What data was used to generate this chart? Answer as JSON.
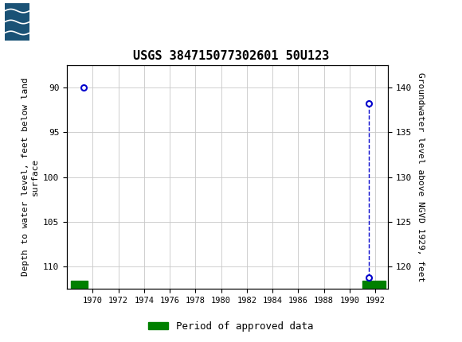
{
  "title": "USGS 384715077302601 50U123",
  "point1_x": 1969.3,
  "point1_y_depth": 90.0,
  "point2_x": 1991.5,
  "point2_y_depth": 91.8,
  "point3_x": 1991.5,
  "point3_y_depth": 111.2,
  "xlim_left": 1968.0,
  "xlim_right": 1993.0,
  "ylim_top": 87.5,
  "ylim_bottom": 112.5,
  "left_yticks": [
    90,
    95,
    100,
    105,
    110
  ],
  "right_yticks_ngvd": [
    140,
    135,
    130,
    125,
    120
  ],
  "right_yticks_depth": [
    90,
    95,
    100,
    105,
    110
  ],
  "xticks": [
    1970,
    1972,
    1974,
    1976,
    1978,
    1980,
    1982,
    1984,
    1986,
    1988,
    1990,
    1992
  ],
  "ylabel_left": "Depth to water level, feet below land\nsurface",
  "ylabel_right": "Groundwater level above NGVD 1929, feet",
  "legend_label": "Period of approved data",
  "legend_color": "#008000",
  "data_color": "#0000cc",
  "grid_color": "#c8c8c8",
  "header_bg_color": "#1a6e3c",
  "plot_bg_color": "#ffffff",
  "bar1_xstart": 1968.3,
  "bar1_xend": 1969.6,
  "bar2_xstart": 1991.0,
  "bar2_xend": 1992.8,
  "bar_y_depth": 112.0,
  "bar_height": 0.8
}
